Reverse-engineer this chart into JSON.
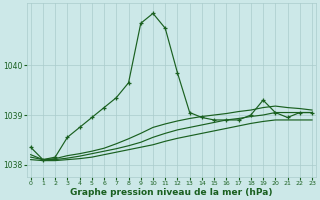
{
  "xlabel": "Graphe pression niveau de la mer (hPa)",
  "bg_color": "#cce8e8",
  "grid_color": "#aacccc",
  "line_color": "#1a6020",
  "marker": "+",
  "ylim": [
    1037.75,
    1041.25
  ],
  "yticks": [
    1038,
    1039,
    1040
  ],
  "xlim": [
    -0.3,
    23.3
  ],
  "xticks": [
    0,
    1,
    2,
    3,
    4,
    5,
    6,
    7,
    8,
    9,
    10,
    11,
    12,
    13,
    14,
    15,
    16,
    17,
    18,
    19,
    20,
    21,
    22,
    23
  ],
  "line1": [
    1038.35,
    1038.1,
    1038.15,
    1038.55,
    1038.75,
    1038.95,
    1039.15,
    1039.35,
    1039.65,
    1040.85,
    1041.05,
    1040.75,
    1039.85,
    1039.05,
    1038.95,
    1038.9,
    1038.9,
    1038.9,
    1039.0,
    1039.3,
    1039.05,
    1038.95,
    1039.05,
    1039.05
  ],
  "line2": [
    1038.2,
    1038.1,
    1038.12,
    1038.18,
    1038.22,
    1038.27,
    1038.33,
    1038.42,
    1038.52,
    1038.63,
    1038.75,
    1038.82,
    1038.88,
    1038.93,
    1038.97,
    1039.0,
    1039.03,
    1039.07,
    1039.1,
    1039.15,
    1039.18,
    1039.15,
    1039.13,
    1039.1
  ],
  "line3": [
    1038.15,
    1038.1,
    1038.1,
    1038.13,
    1038.17,
    1038.22,
    1038.27,
    1038.32,
    1038.38,
    1038.45,
    1038.55,
    1038.63,
    1038.7,
    1038.75,
    1038.8,
    1038.85,
    1038.9,
    1038.93,
    1038.97,
    1039.0,
    1039.05,
    1039.05,
    1039.05,
    1039.05
  ],
  "line4": [
    1038.1,
    1038.08,
    1038.08,
    1038.1,
    1038.12,
    1038.15,
    1038.2,
    1038.25,
    1038.3,
    1038.35,
    1038.4,
    1038.47,
    1038.53,
    1038.58,
    1038.63,
    1038.68,
    1038.73,
    1038.78,
    1038.83,
    1038.87,
    1038.9,
    1038.9,
    1038.9,
    1038.9
  ]
}
